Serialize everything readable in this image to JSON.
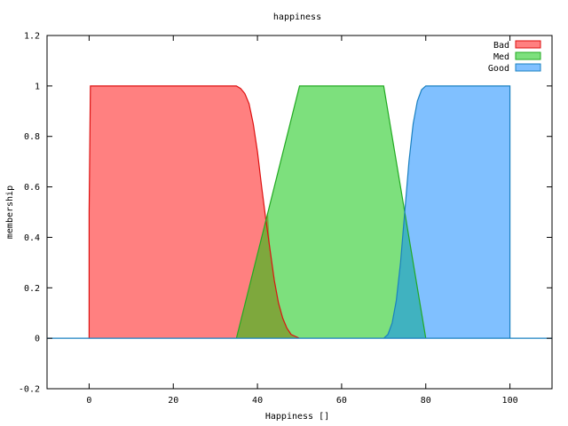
{
  "chart_data": {
    "type": "area",
    "title": "happiness",
    "xlabel": "Happiness []",
    "ylabel": "membership",
    "xlim": [
      -10,
      110
    ],
    "ylim": [
      -0.2,
      1.2
    ],
    "x_ticks": [
      "0",
      "20",
      "40",
      "60",
      "80",
      "100"
    ],
    "x_tick_values": [
      0,
      20,
      40,
      60,
      80,
      100
    ],
    "y_ticks": [
      "-0.2",
      "0",
      "0.2",
      "0.4",
      "0.6",
      "0.8",
      "1",
      "1.2"
    ],
    "y_tick_values": [
      -0.2,
      0,
      0.2,
      0.4,
      0.6,
      0.8,
      1,
      1.2
    ],
    "grid": false,
    "legend_position": "top-right",
    "baseline_color": "#1a80c0",
    "series": [
      {
        "name": "Bad",
        "fill": "#ff8080",
        "stroke": "#dd1111",
        "points": [
          [
            0,
            0
          ],
          [
            0,
            0.5
          ],
          [
            0.3,
            1
          ],
          [
            35,
            1
          ],
          [
            36,
            0.99
          ],
          [
            37,
            0.97
          ],
          [
            38,
            0.93
          ],
          [
            39,
            0.85
          ],
          [
            40,
            0.74
          ],
          [
            41,
            0.6
          ],
          [
            42,
            0.47
          ],
          [
            43,
            0.35
          ],
          [
            44,
            0.23
          ],
          [
            45,
            0.14
          ],
          [
            46,
            0.08
          ],
          [
            47,
            0.04
          ],
          [
            48,
            0.015
          ],
          [
            50,
            0
          ]
        ]
      },
      {
        "name": "Med",
        "fill": "#7de07d",
        "stroke": "#22aa22",
        "points": [
          [
            35,
            0
          ],
          [
            50,
            1
          ],
          [
            70,
            1
          ],
          [
            80,
            0
          ]
        ]
      },
      {
        "name": "Good",
        "fill": "#80c0ff",
        "stroke": "#1a80c0",
        "points": [
          [
            70,
            0
          ],
          [
            71,
            0.015
          ],
          [
            72,
            0.06
          ],
          [
            73,
            0.15
          ],
          [
            74,
            0.3
          ],
          [
            75,
            0.5
          ],
          [
            76,
            0.7
          ],
          [
            77,
            0.85
          ],
          [
            78,
            0.94
          ],
          [
            79,
            0.985
          ],
          [
            80,
            1
          ],
          [
            100,
            1
          ],
          [
            100,
            0.5
          ],
          [
            100,
            0
          ]
        ]
      }
    ],
    "overlaps": [
      {
        "between": [
          "Bad",
          "Med"
        ],
        "fill": "#7ea83d",
        "points": [
          [
            35,
            0
          ],
          [
            42.5,
            0.5
          ],
          [
            43,
            0.35
          ],
          [
            44,
            0.23
          ],
          [
            45,
            0.14
          ],
          [
            46,
            0.08
          ],
          [
            47,
            0.04
          ],
          [
            48,
            0.015
          ],
          [
            50,
            0
          ]
        ]
      },
      {
        "between": [
          "Med",
          "Good"
        ],
        "fill": "#40b2c0",
        "points": [
          [
            70,
            0
          ],
          [
            71,
            0.015
          ],
          [
            72,
            0.06
          ],
          [
            73,
            0.15
          ],
          [
            74,
            0.3
          ],
          [
            75,
            0.5
          ],
          [
            80,
            0
          ]
        ]
      }
    ]
  }
}
